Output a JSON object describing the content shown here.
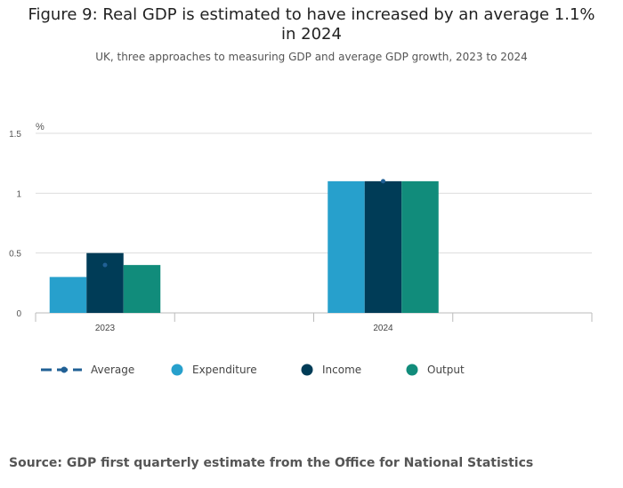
{
  "title": "Figure 9: Real GDP is estimated to have increased by an average 1.1% in 2024",
  "subtitle": "UK, three approaches to measuring GDP and average GDP growth, 2023 to 2024",
  "source": "Source: GDP first quarterly estimate from the Office for National Statistics",
  "colors": {
    "expenditure": "#27a0cc",
    "income": "#003c57",
    "output": "#118c7b",
    "average": "#206095",
    "grid": "#dddddd",
    "axis": "#bbbbbb"
  },
  "chart_data": {
    "type": "bar",
    "title": "Figure 9: Real GDP is estimated to have increased by an average 1.1% in 2024",
    "subtitle": "UK, three approaches to measuring GDP and average GDP growth, 2023 to 2024",
    "ylabel": "%",
    "ylim": [
      0,
      1.5
    ],
    "yticks": [
      "0",
      "0.5",
      "1",
      "1.5"
    ],
    "ytick_values": [
      0,
      0.5,
      1,
      1.5
    ],
    "categories": [
      "2023",
      "2024"
    ],
    "grid": true,
    "legend_position": "bottom",
    "series": [
      {
        "name": "Expenditure",
        "key": "expenditure",
        "values": [
          0.3,
          1.1
        ]
      },
      {
        "name": "Income",
        "key": "income",
        "values": [
          0.5,
          1.1
        ]
      },
      {
        "name": "Output",
        "key": "output",
        "values": [
          0.4,
          1.1
        ]
      }
    ],
    "average": {
      "name": "Average",
      "key": "average",
      "values": [
        0.4,
        1.1
      ]
    }
  },
  "legend": [
    {
      "label": "Average",
      "key": "average",
      "marker": "dash-dot-line"
    },
    {
      "label": "Expenditure",
      "key": "expenditure",
      "marker": "circle"
    },
    {
      "label": "Income",
      "key": "income",
      "marker": "circle"
    },
    {
      "label": "Output",
      "key": "output",
      "marker": "circle"
    }
  ]
}
